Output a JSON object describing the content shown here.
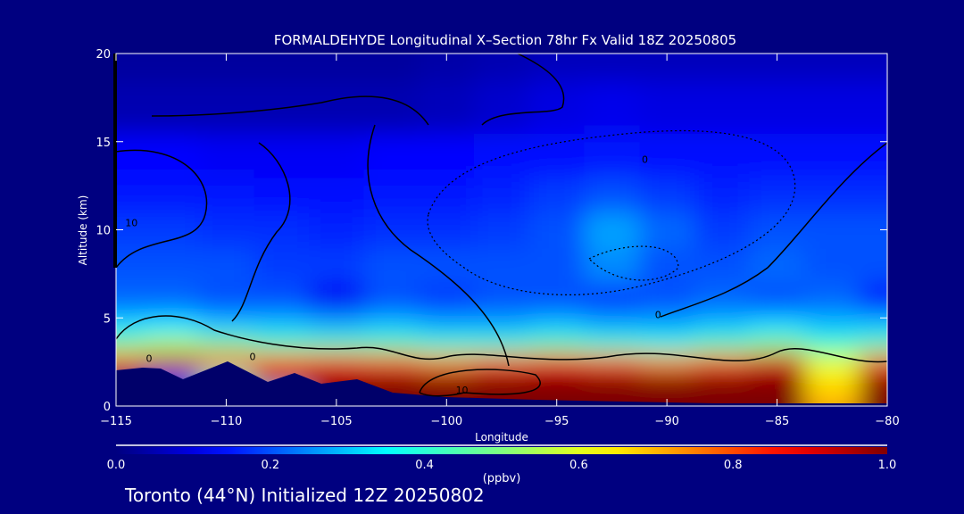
{
  "chart_data": {
    "type": "heatmap",
    "title": "FORMALDEHYDE Longitudinal X–Section 78hr  Fx Valid 18Z 20250805",
    "xlabel": "Longitude",
    "ylabel": "Altitude (km)",
    "xlim": [
      -115,
      -80
    ],
    "ylim": [
      0,
      20
    ],
    "x_ticks": [
      "−115",
      "−110",
      "−105",
      "−100",
      "−95",
      "−90",
      "−85",
      "−80"
    ],
    "x_tick_values": [
      -115,
      -110,
      -105,
      -100,
      -95,
      -90,
      -85,
      -80
    ],
    "y_ticks": [
      "0",
      "5",
      "10",
      "15",
      "20"
    ],
    "y_tick_values": [
      0,
      5,
      10,
      15,
      20
    ],
    "lon": [
      -115,
      -112.5,
      -110,
      -107.5,
      -105,
      -102.5,
      -100,
      -97.5,
      -95,
      -92.5,
      -90,
      -87.5,
      -85,
      -82.5,
      -80
    ],
    "alt": [
      0.5,
      1.5,
      2.5,
      3.5,
      4.5,
      6,
      8,
      10,
      12,
      14,
      17,
      20
    ],
    "values": [
      [
        0.0,
        0.0,
        0.0,
        0.3,
        0.95,
        1.0,
        1.0,
        1.0,
        1.0,
        1.0,
        1.0,
        1.0,
        1.0,
        0.7,
        1.0
      ],
      [
        0.0,
        0.2,
        0.4,
        0.95,
        1.0,
        1.0,
        1.0,
        1.0,
        1.0,
        1.0,
        1.0,
        1.0,
        1.0,
        0.65,
        1.0
      ],
      [
        0.8,
        0.92,
        0.85,
        0.8,
        0.85,
        0.8,
        0.75,
        0.8,
        0.85,
        0.8,
        0.75,
        0.8,
        0.9,
        0.6,
        0.8
      ],
      [
        0.5,
        0.55,
        0.5,
        0.45,
        0.45,
        0.45,
        0.42,
        0.42,
        0.45,
        0.42,
        0.4,
        0.45,
        0.5,
        0.42,
        0.45
      ],
      [
        0.32,
        0.33,
        0.3,
        0.3,
        0.28,
        0.3,
        0.28,
        0.28,
        0.3,
        0.28,
        0.28,
        0.3,
        0.32,
        0.3,
        0.3
      ],
      [
        0.22,
        0.22,
        0.2,
        0.2,
        0.12,
        0.2,
        0.18,
        0.2,
        0.2,
        0.18,
        0.2,
        0.22,
        0.2,
        0.22,
        0.15
      ],
      [
        0.2,
        0.2,
        0.2,
        0.18,
        0.18,
        0.2,
        0.2,
        0.2,
        0.2,
        0.25,
        0.2,
        0.2,
        0.22,
        0.2,
        0.2
      ],
      [
        0.18,
        0.18,
        0.17,
        0.17,
        0.16,
        0.17,
        0.17,
        0.18,
        0.2,
        0.27,
        0.22,
        0.18,
        0.2,
        0.2,
        0.2
      ],
      [
        0.15,
        0.15,
        0.15,
        0.14,
        0.14,
        0.15,
        0.15,
        0.16,
        0.18,
        0.2,
        0.18,
        0.16,
        0.17,
        0.17,
        0.17
      ],
      [
        0.13,
        0.13,
        0.12,
        0.12,
        0.12,
        0.13,
        0.13,
        0.14,
        0.14,
        0.15,
        0.14,
        0.14,
        0.14,
        0.14,
        0.14
      ],
      [
        0.05,
        0.05,
        0.05,
        0.05,
        0.05,
        0.05,
        0.06,
        0.08,
        0.1,
        0.11,
        0.1,
        0.1,
        0.1,
        0.1,
        0.1
      ],
      [
        0.03,
        0.03,
        0.03,
        0.03,
        0.03,
        0.03,
        0.04,
        0.05,
        0.06,
        0.06,
        0.06,
        0.06,
        0.06,
        0.06,
        0.06
      ]
    ],
    "contour_labels": [
      {
        "text": "0",
        "lon": -113.5,
        "alt": 2.5
      },
      {
        "text": "0",
        "lon": -108.8,
        "alt": 2.6
      },
      {
        "text": "10",
        "lon": -99.3,
        "alt": 0.7
      },
      {
        "text": "0",
        "lon": -90.4,
        "alt": 5.0
      },
      {
        "text": "10",
        "lon": -114.3,
        "alt": 10.2
      },
      {
        "text": "0",
        "lon": -91,
        "alt": 13.8
      }
    ],
    "colorbar": {
      "label": "(ppbv)",
      "range": [
        0,
        1
      ],
      "ticks": [
        "0.0",
        "0.2",
        "0.4",
        "0.6",
        "0.8",
        "1.0"
      ],
      "tick_values": [
        0,
        0.2,
        0.4,
        0.6,
        0.8,
        1.0
      ]
    }
  },
  "footer": "Toronto (44°N) Initialized 12Z 20250802",
  "colors": {
    "background": "#000080",
    "axis": "#ffffff",
    "terrain": "#00006a"
  }
}
